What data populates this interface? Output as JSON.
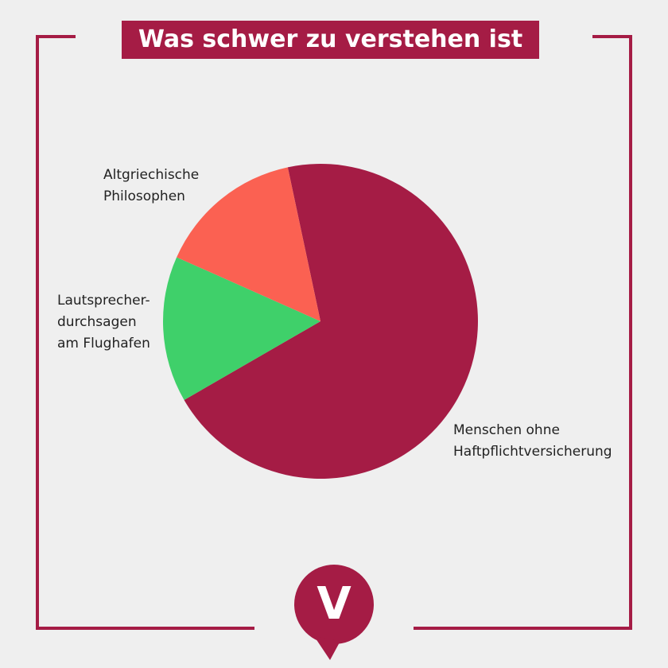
{
  "chart_data": {
    "type": "pie",
    "title": "Was schwer zu verstehen ist",
    "categories": [
      "Menschen ohne\nHaftpflichtversicherung",
      "Lautsprecher-\ndurchsagen\nam Flughafen",
      "Altgriechische\nPhilosophen"
    ],
    "values": [
      70,
      15,
      15
    ],
    "colors": [
      "#a51c45",
      "#3fd06a",
      "#fb6152"
    ],
    "logo": "V"
  }
}
